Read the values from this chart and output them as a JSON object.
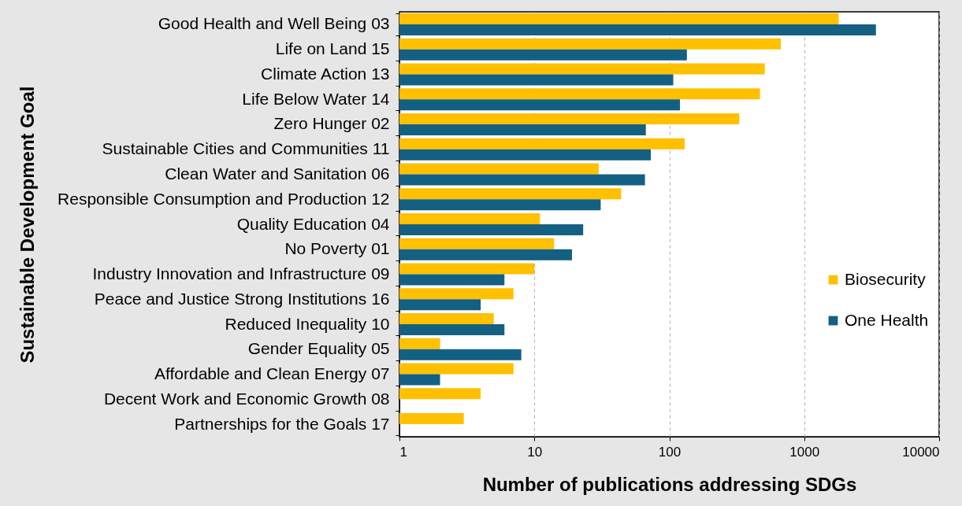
{
  "chart_data": {
    "type": "bar",
    "orientation": "horizontal",
    "xlabel": "Number of publications addressing SDGs",
    "ylabel": "Sustainable Development Goal",
    "categories": [
      "Good Health and Well Being 03",
      "Life on Land 15",
      "Climate Action 13",
      "Life Below Water 14",
      "Zero Hunger 02",
      "Sustainable Cities and Communities 11",
      "Clean Water and Sanitation 06",
      "Responsible Consumption and Production 12",
      "Quality Education 04",
      "No Poverty 01",
      "Industry Innovation and Infrastructure 09",
      "Peace and Justice Strong Institutions 16",
      "Reduced Inequality 10",
      "Gender Equality 05",
      "Affordable and Clean Energy 07",
      "Decent Work and Economic Growth 08",
      "Partnerships for the Goals 17"
    ],
    "series": [
      {
        "name": "Biosecurity",
        "color": "#ffc000",
        "values": [
          1800,
          670,
          510,
          470,
          330,
          130,
          30,
          44,
          11,
          14,
          10,
          7,
          5,
          2,
          7,
          4,
          3
        ]
      },
      {
        "name": "One Health",
        "color": "#146082",
        "values": [
          3400,
          135,
          107,
          120,
          67,
          73,
          66,
          31,
          23,
          19,
          6,
          4,
          6,
          8,
          2,
          null,
          null
        ]
      }
    ],
    "log": "x",
    "xlim": [
      1,
      10000
    ],
    "xticks": [
      1,
      10,
      100,
      1000,
      10000
    ],
    "grid": "x",
    "legend": "right"
  }
}
